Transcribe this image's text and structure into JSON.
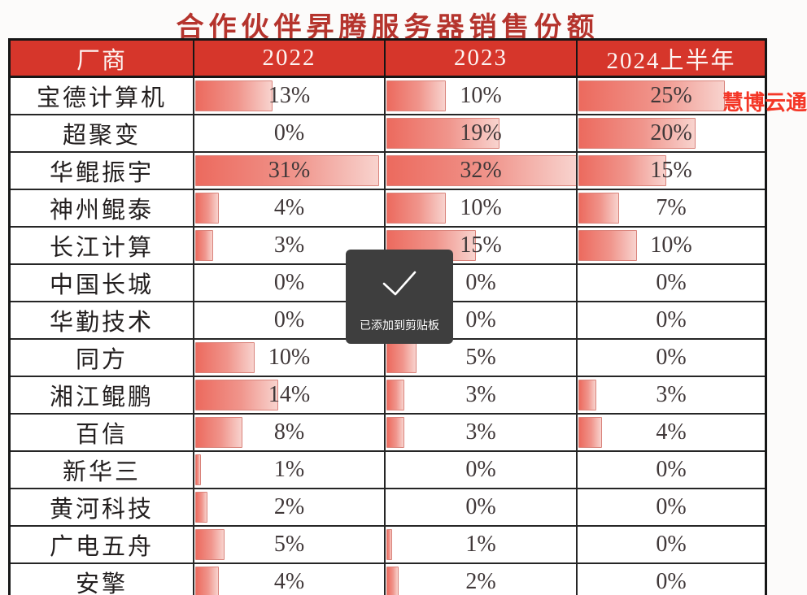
{
  "title": "合作伙伴昇腾服务器销售份额",
  "watermark": "慧博云通",
  "toast": {
    "message": "已添加到剪贴板",
    "icon": "checkmark-icon"
  },
  "colors": {
    "header_bg": "#d6362b",
    "title_red": "#b5342d",
    "watermark_red": "#f43727",
    "bar_gradient_start": "#ec6a5e",
    "bar_gradient_end": "#f8d3ce",
    "toast_bg": "#3e3e3e"
  },
  "table": {
    "columns": [
      "厂商",
      "2022",
      "2023",
      "2024上半年"
    ],
    "unit": "%",
    "bar_scale_max": 32,
    "rows": [
      {
        "vendor": "宝德计算机",
        "values": [
          13,
          10,
          25
        ]
      },
      {
        "vendor": "超聚变",
        "values": [
          0,
          19,
          20
        ]
      },
      {
        "vendor": "华鲲振宇",
        "values": [
          31,
          32,
          15
        ]
      },
      {
        "vendor": "神州鲲泰",
        "values": [
          4,
          10,
          7
        ]
      },
      {
        "vendor": "长江计算",
        "values": [
          3,
          15,
          10
        ]
      },
      {
        "vendor": "中国长城",
        "values": [
          0,
          0,
          0
        ]
      },
      {
        "vendor": "华勤技术",
        "values": [
          0,
          0,
          0
        ]
      },
      {
        "vendor": "同方",
        "values": [
          10,
          5,
          0
        ]
      },
      {
        "vendor": "湘江鲲鹏",
        "values": [
          14,
          3,
          3
        ]
      },
      {
        "vendor": "百信",
        "values": [
          8,
          3,
          4
        ]
      },
      {
        "vendor": "新华三",
        "values": [
          1,
          0,
          0
        ]
      },
      {
        "vendor": "黄河科技",
        "values": [
          2,
          0,
          0
        ]
      },
      {
        "vendor": "广电五舟",
        "values": [
          5,
          1,
          0
        ]
      },
      {
        "vendor": "安擎",
        "values": [
          4,
          2,
          0
        ]
      }
    ]
  },
  "chart_data": {
    "type": "table",
    "title": "合作伙伴昇腾服务器销售份额",
    "categories": [
      "宝德计算机",
      "超聚变",
      "华鲲振宇",
      "神州鲲泰",
      "长江计算",
      "中国长城",
      "华勤技术",
      "同方",
      "湘江鲲鹏",
      "百信",
      "新华三",
      "黄河科技",
      "广电五舟",
      "安擎"
    ],
    "series": [
      {
        "name": "2022",
        "values": [
          13,
          0,
          31,
          4,
          3,
          0,
          0,
          10,
          14,
          8,
          1,
          2,
          5,
          4
        ]
      },
      {
        "name": "2023",
        "values": [
          10,
          19,
          32,
          10,
          15,
          0,
          0,
          5,
          3,
          3,
          0,
          0,
          1,
          2
        ]
      },
      {
        "name": "2024上半年",
        "values": [
          25,
          20,
          15,
          7,
          10,
          0,
          0,
          0,
          3,
          4,
          0,
          0,
          0,
          0
        ]
      }
    ],
    "unit": "%",
    "value_range": [
      0,
      32
    ],
    "layout": "in-cell data bars, bar length scaled so 32% fills the column"
  }
}
